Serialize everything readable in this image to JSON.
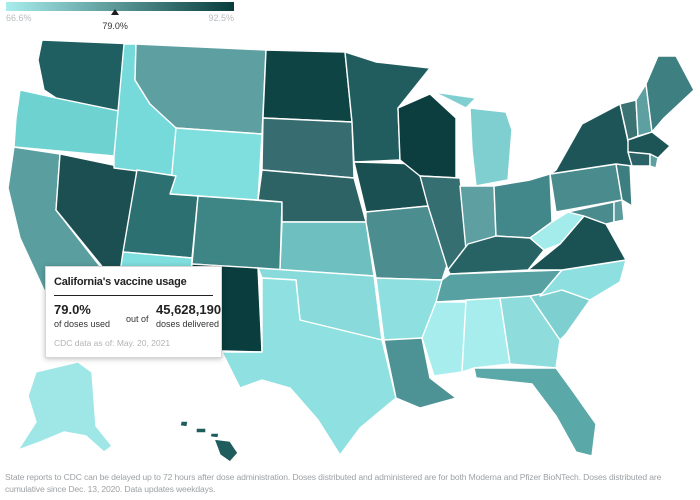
{
  "legend": {
    "min_label": "66.6%",
    "max_label": "92.5%",
    "current_label": "79.0%",
    "min_value": 66.6,
    "max_value": 92.5,
    "current_value": 79.0,
    "color_low": "#a8eded",
    "color_high": "#083c3c"
  },
  "tooltip": {
    "title": "California's vaccine usage",
    "percent": "79.0%",
    "used_label": "of doses used",
    "out_of": "out of",
    "doses": "45,628,190",
    "delivered_label": "doses delivered",
    "date_note": "CDC data as of: May. 20, 2021"
  },
  "footnote": "State reports to CDC can be delayed up to 72 hours after dose administration. Doses distributed and administered are for both Moderna and Pfizer BioNTech. Doses distributed are cumulative since Dec. 13, 2020. Data updates weekdays.",
  "map_data": {
    "selected_state": "CA",
    "colors": {
      "WA": "#1f5f62",
      "OR": "#6ed2d1",
      "CA": "#5a9ea0",
      "NV": "#1c4f52",
      "ID": "#77dada",
      "MT": "#5e9fa1",
      "WY": "#7fdede",
      "UT": "#2c7071",
      "AZ": "#7fdede",
      "CO": "#3e8586",
      "NM": "#0a3d3e",
      "ND": "#0f4445",
      "SD": "#376d70",
      "NE": "#2d6364",
      "KS": "#6ebfc0",
      "OK": "#89dbdb",
      "TX": "#8fe0e0",
      "MN": "#215c5e",
      "IA": "#1b5052",
      "MO": "#4c8e90",
      "AR": "#8ee0e0",
      "LA": "#4d9395",
      "WI": "#0c3e40",
      "IL": "#356f72",
      "MI": "#7fcfd0",
      "IN": "#5e9fa1",
      "OH": "#42888a",
      "KY": "#276365",
      "TN": "#57a1a2",
      "MS": "#a8eded",
      "AL": "#a8eded",
      "GA": "#8fdcdc",
      "FL": "#5ba8a9",
      "SC": "#7ed0d0",
      "NC": "#8ee0e0",
      "VA": "#1a5254",
      "WV": "#a4ecec",
      "PA": "#4a8b8d",
      "NY": "#1e5558",
      "ME": "#3e7f81",
      "VT": "#3b7274",
      "NH": "#5e9fa1",
      "MA": "#1d5557",
      "CT": "#2a6265",
      "RI": "#5e9fa1",
      "NJ": "#3d7e80",
      "DE": "#5a9b9d",
      "MD": "#4a8b8d",
      "AK": "#9fe6e6",
      "HI": "#1f5c5e"
    }
  }
}
